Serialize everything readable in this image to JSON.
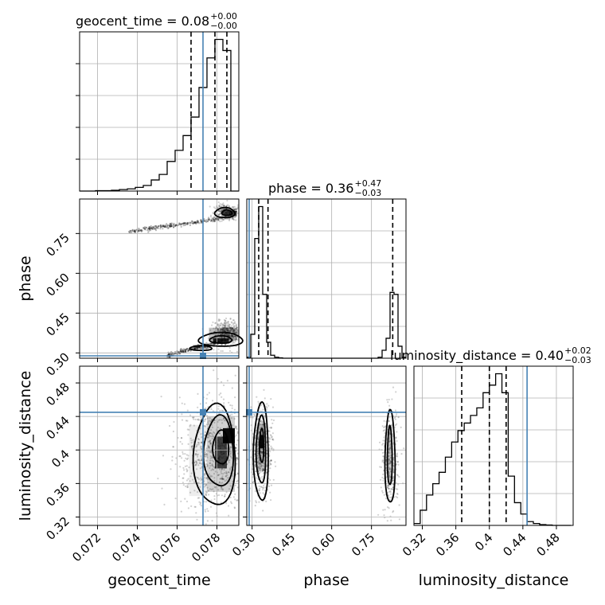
{
  "chart_data": {
    "type": "corner",
    "colors": {
      "truth": "#4682b4",
      "hist": "#000000",
      "grid": "#b0b0b0",
      "points": "#000000"
    },
    "parameters": [
      {
        "name": "geocent_time",
        "label": "geocent_time",
        "range": [
          0.0711,
          0.0791
        ],
        "ticks": [
          0.072,
          0.074,
          0.076,
          0.078
        ],
        "truth": 0.0773,
        "quantiles": [
          0.0767,
          0.0779,
          0.0785
        ],
        "title": {
          "main": "geocent_time = 0.08",
          "plus": "+0.00",
          "minus": "−0.00"
        }
      },
      {
        "name": "phase",
        "label": "phase",
        "range": [
          0.28,
          0.88
        ],
        "ticks": [
          0.3,
          0.45,
          0.6,
          0.75
        ],
        "tick_labels": [
          "0.30",
          "0.45",
          "0.60",
          "0.75"
        ],
        "truth": 0.289,
        "quantiles": [
          0.325,
          0.36,
          0.83
        ],
        "title": {
          "main": "phase = 0.36",
          "plus": "+0.47",
          "minus": "−0.03"
        }
      },
      {
        "name": "luminosity_distance",
        "label": "luminosity_distance",
        "range": [
          0.31,
          0.5
        ],
        "ticks": [
          0.32,
          0.36,
          0.4,
          0.44,
          0.48
        ],
        "truth": 0.445,
        "quantiles": [
          0.367,
          0.4,
          0.42
        ],
        "title": {
          "main": "luminosity_distance = 0.40",
          "plus": "+0.02",
          "minus": "−0.03"
        }
      }
    ],
    "histograms": {
      "geocent_time": {
        "bin_edges": [
          0.0711,
          0.0715,
          0.0719,
          0.0723,
          0.0727,
          0.0731,
          0.0735,
          0.0739,
          0.0743,
          0.0747,
          0.0751,
          0.0755,
          0.0759,
          0.0763,
          0.0767,
          0.0771,
          0.0775,
          0.0779,
          0.0783,
          0.0787,
          0.0791
        ],
        "counts": [
          0,
          0,
          1,
          1,
          2,
          4,
          6,
          10,
          15,
          30,
          45,
          80,
          110,
          150,
          200,
          280,
          360,
          410,
          380,
          0
        ]
      },
      "phase": {
        "bin_edges": [
          0.28,
          0.295,
          0.31,
          0.325,
          0.34,
          0.355,
          0.37,
          0.385,
          0.4,
          0.415,
          0.43,
          0.445,
          0.46,
          0.475,
          0.49,
          0.505,
          0.52,
          0.535,
          0.55,
          0.565,
          0.58,
          0.595,
          0.61,
          0.625,
          0.64,
          0.655,
          0.67,
          0.685,
          0.7,
          0.715,
          0.73,
          0.745,
          0.76,
          0.775,
          0.79,
          0.805,
          0.82,
          0.835,
          0.85,
          0.865,
          0.88
        ],
        "counts": [
          5,
          120,
          600,
          760,
          320,
          80,
          15,
          5,
          2,
          0,
          0,
          0,
          0,
          0,
          0,
          0,
          0,
          0,
          0,
          0,
          0,
          0,
          0,
          0,
          0,
          0,
          0,
          0,
          0,
          0,
          0,
          0,
          0,
          5,
          40,
          100,
          330,
          320,
          60,
          5
        ]
      },
      "luminosity_distance": {
        "bin_edges": [
          0.31,
          0.3175,
          0.325,
          0.3325,
          0.34,
          0.3475,
          0.355,
          0.3625,
          0.37,
          0.3775,
          0.385,
          0.3925,
          0.4,
          0.4075,
          0.415,
          0.4225,
          0.43,
          0.4375,
          0.445,
          0.4525,
          0.46,
          0.4675,
          0.475,
          0.4825,
          0.49,
          0.4975
        ],
        "counts": [
          5,
          40,
          80,
          110,
          140,
          180,
          220,
          250,
          270,
          290,
          310,
          350,
          370,
          400,
          350,
          130,
          60,
          30,
          10,
          5,
          2,
          1,
          0,
          0,
          0
        ]
      }
    }
  }
}
